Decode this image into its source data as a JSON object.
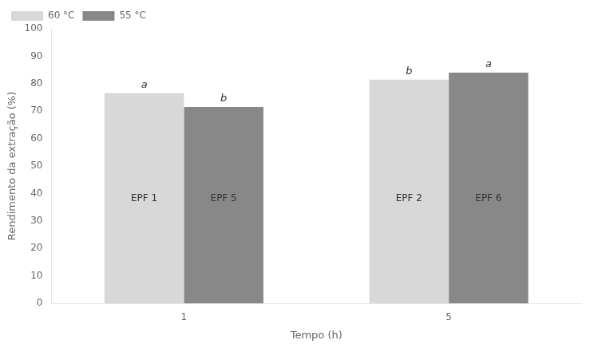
{
  "chart_data": {
    "type": "bar",
    "xlabel": "Tempo (h)",
    "ylabel": "Rendimento da extração (%)",
    "categories": [
      "1",
      "5"
    ],
    "series": [
      {
        "name": "60 °C",
        "color": "#d8d8d8",
        "values": [
          76.5,
          81.5
        ],
        "bar_labels": [
          "EPF 1",
          "EPF 2"
        ],
        "stat_labels": [
          "a",
          "b"
        ]
      },
      {
        "name": "55 °C",
        "color": "#888888",
        "values": [
          71.5,
          84.0
        ],
        "bar_labels": [
          "EPF 5",
          "EPF 6"
        ],
        "stat_labels": [
          "b",
          "a"
        ]
      }
    ],
    "ylim": [
      0,
      100
    ],
    "yticks": [
      0,
      10,
      20,
      30,
      40,
      50,
      60,
      70,
      80,
      90,
      100
    ],
    "grid": false,
    "legend": "upper left"
  }
}
